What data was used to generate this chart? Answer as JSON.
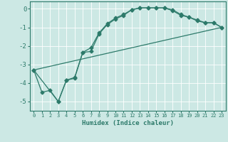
{
  "title": "",
  "xlabel": "Humidex (Indice chaleur)",
  "bg_color": "#cce8e4",
  "line_color": "#2d7a6a",
  "grid_color": "#ffffff",
  "xlim": [
    -0.5,
    23.5
  ],
  "ylim": [
    -5.5,
    0.4
  ],
  "xticks": [
    0,
    1,
    2,
    3,
    4,
    5,
    6,
    7,
    8,
    9,
    10,
    11,
    12,
    13,
    14,
    15,
    16,
    17,
    18,
    19,
    20,
    21,
    22,
    23
  ],
  "yticks": [
    0,
    -1,
    -2,
    -3,
    -4,
    -5
  ],
  "curve1_x": [
    0,
    1,
    2,
    3,
    4,
    5,
    6,
    7,
    8,
    9,
    10,
    11,
    12,
    13,
    14,
    15,
    16,
    17,
    18,
    19,
    20,
    21,
    22,
    23
  ],
  "curve1_y": [
    -3.3,
    -4.5,
    -4.4,
    -5.0,
    -3.85,
    -3.75,
    -2.35,
    -2.3,
    -1.35,
    -0.85,
    -0.55,
    -0.35,
    -0.05,
    0.05,
    0.05,
    0.05,
    0.05,
    -0.1,
    -0.35,
    -0.45,
    -0.65,
    -0.75,
    -0.75,
    -1.0
  ],
  "curve2_x": [
    0,
    3,
    4,
    5,
    6,
    7,
    8,
    9,
    10,
    11,
    12,
    13,
    14,
    15,
    16,
    17,
    18,
    19,
    20,
    21,
    22,
    23
  ],
  "curve2_y": [
    -3.3,
    -5.0,
    -3.85,
    -3.7,
    -2.35,
    -2.1,
    -1.3,
    -0.8,
    -0.5,
    -0.3,
    -0.05,
    0.05,
    0.05,
    0.05,
    0.05,
    -0.05,
    -0.3,
    -0.45,
    -0.6,
    -0.75,
    -0.75,
    -1.0
  ],
  "curve3_x": [
    0,
    23
  ],
  "curve3_y": [
    -3.3,
    -1.0
  ],
  "markersize": 2.5,
  "linewidth": 0.9
}
